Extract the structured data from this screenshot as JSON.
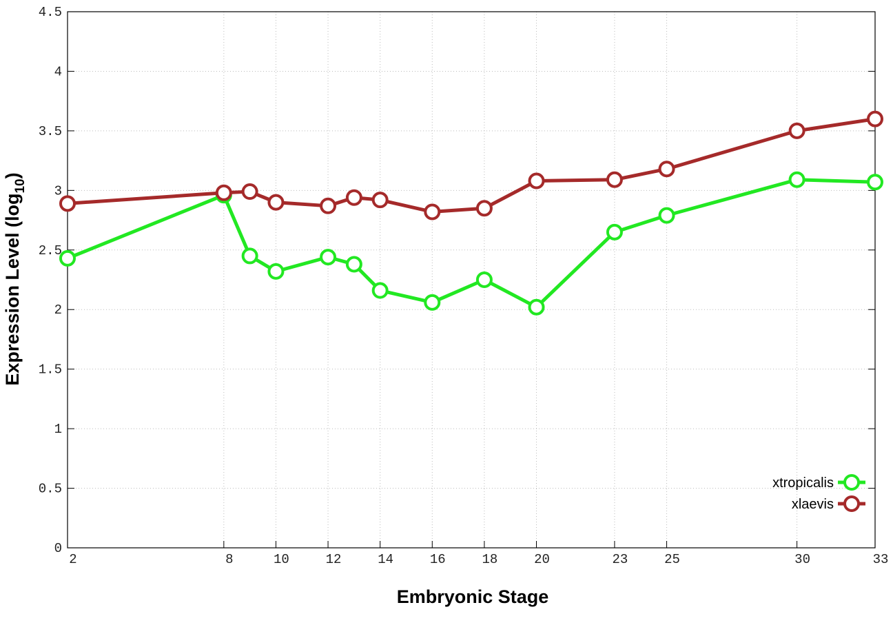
{
  "chart_data": {
    "type": "line",
    "x_label": "Embryonic Stage",
    "y_label_parts": [
      "Expression Level (log",
      "10",
      ")"
    ],
    "x": [
      2,
      8,
      9,
      10,
      12,
      13,
      14,
      16,
      18,
      20,
      23,
      25,
      30,
      33
    ],
    "series": [
      {
        "name": "xtropicalis",
        "color": "#22e822",
        "values": [
          2.43,
          2.96,
          2.45,
          2.32,
          2.44,
          2.38,
          2.16,
          2.06,
          2.25,
          2.02,
          2.65,
          2.79,
          3.09,
          3.07
        ]
      },
      {
        "name": "xlaevis",
        "color": "#a52a2a",
        "values": [
          2.89,
          2.98,
          2.99,
          2.9,
          2.87,
          2.94,
          2.92,
          2.82,
          2.85,
          3.08,
          3.09,
          3.18,
          3.5,
          3.6
        ]
      }
    ],
    "xlim": [
      2,
      33
    ],
    "xticks": [
      2,
      8,
      10,
      12,
      14,
      16,
      18,
      20,
      23,
      25,
      30,
      33
    ],
    "ylim": [
      0,
      4.5
    ],
    "yticks": [
      0,
      0.5,
      1,
      1.5,
      2,
      2.5,
      3,
      3.5,
      4,
      4.5
    ],
    "grid": true,
    "legend": "lower right"
  }
}
